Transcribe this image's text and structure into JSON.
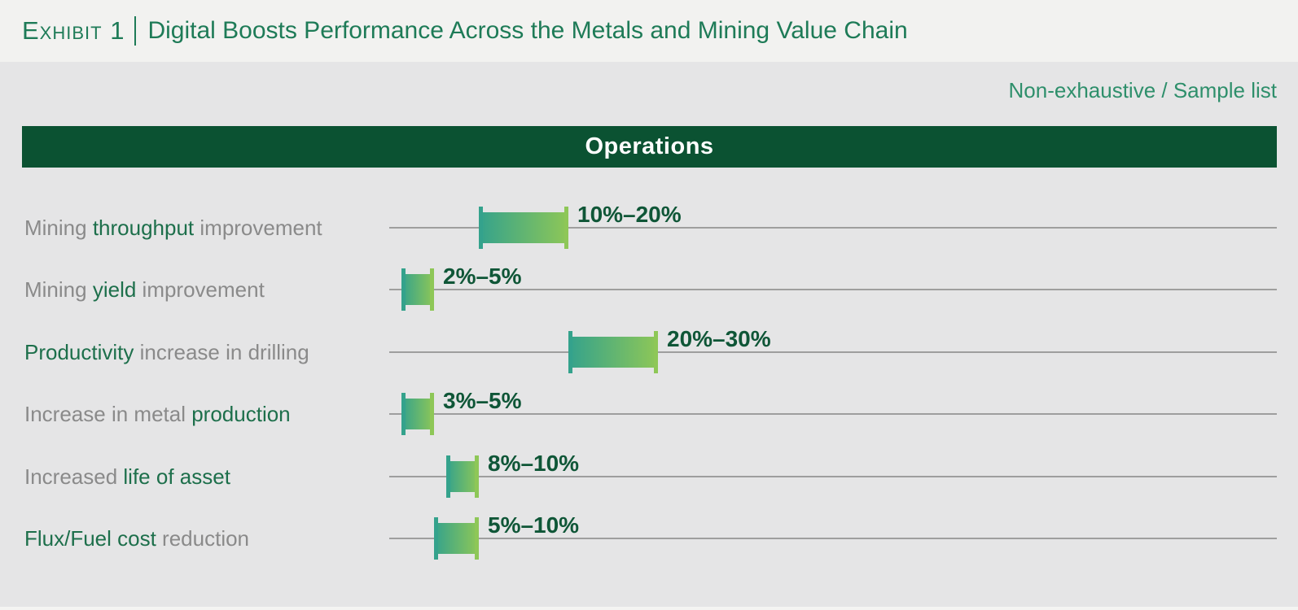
{
  "header": {
    "exhibit_label": "Exhibit 1",
    "divider": "|",
    "title": "Digital Boosts Performance Across the Metals and Mining Value Chain",
    "note": "Non-exhaustive / Sample list",
    "band_label": "Operations"
  },
  "colors": {
    "title_green": "#1e7b57",
    "note_green": "#2e8f6b",
    "band_bg": "#0b5232",
    "band_text": "#ffffff",
    "category_gray": "#8a8a8a",
    "category_green": "#1d6f4b",
    "value_green": "#0f5637",
    "line_gray": "#9e9e9e",
    "bar_gradient_start": "#34a28c",
    "bar_gradient_end": "#8ec757",
    "bg_top": "#f2f2f0",
    "bg_main": "#e5e5e6"
  },
  "chart_data": {
    "type": "bar",
    "orientation": "horizontal-range",
    "title": "Operations",
    "subtitle": "Non-exhaustive / Sample list",
    "xlabel": "",
    "ylabel": "",
    "xlim": [
      0,
      99
    ],
    "unit": "%",
    "grid": false,
    "legend": false,
    "categories": [
      "Mining throughput improvement",
      "Mining yield improvement",
      "Productivity increase in drilling",
      "Increase in metal production",
      "Increased life of asset",
      "Flux/Fuel cost reduction"
    ],
    "values": [
      [
        10,
        20
      ],
      [
        2,
        5
      ],
      [
        20,
        30
      ],
      [
        3,
        5
      ],
      [
        8,
        10
      ],
      [
        5,
        10
      ]
    ],
    "value_labels": [
      "10%–20%",
      "2%–5%",
      "20%–30%",
      "3%–5%",
      "8%–10%",
      "5%–10%"
    ],
    "rows": [
      {
        "label_parts": [
          {
            "text": "Mining ",
            "green": false
          },
          {
            "text": "throughput",
            "green": true
          },
          {
            "text": " improvement",
            "green": false
          }
        ],
        "low": 10,
        "high": 20,
        "range_label": "10%–20%"
      },
      {
        "label_parts": [
          {
            "text": "Mining ",
            "green": false
          },
          {
            "text": "yield",
            "green": true
          },
          {
            "text": " improvement",
            "green": false
          }
        ],
        "low": 2,
        "high": 5,
        "range_label": "2%–5%"
      },
      {
        "label_parts": [
          {
            "text": "Productivity",
            "green": true
          },
          {
            "text": " increase in drilling",
            "green": false
          }
        ],
        "low": 20,
        "high": 30,
        "range_label": "20%–30%"
      },
      {
        "label_parts": [
          {
            "text": "Increase in metal ",
            "green": false
          },
          {
            "text": "production",
            "green": true
          }
        ],
        "low": 3,
        "high": 5,
        "range_label": "3%–5%"
      },
      {
        "label_parts": [
          {
            "text": "Increased ",
            "green": false
          },
          {
            "text": "life of asset",
            "green": true
          }
        ],
        "low": 8,
        "high": 10,
        "range_label": "8%–10%"
      },
      {
        "label_parts": [
          {
            "text": "Flux/Fuel cost",
            "green": true
          },
          {
            "text": " reduction",
            "green": false
          }
        ],
        "low": 5,
        "high": 10,
        "range_label": "5%–10%"
      }
    ]
  }
}
